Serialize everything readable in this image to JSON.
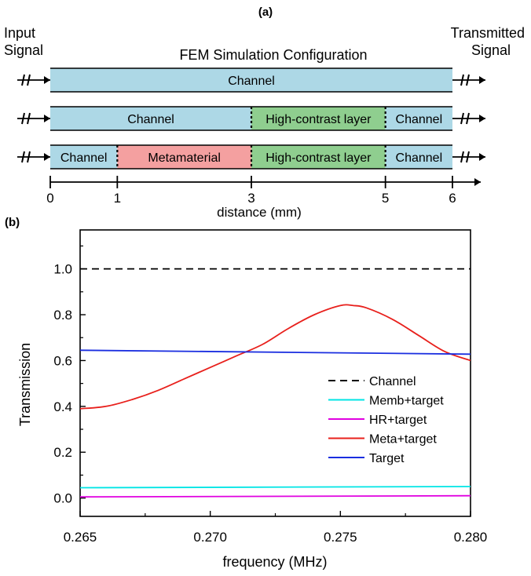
{
  "panel_a": {
    "label": "(a)",
    "title": "FEM Simulation Configuration",
    "input_label_line1": "Input",
    "input_label_line2": "Signal",
    "output_label_line1": "Transmitted",
    "output_label_line2": "Signal",
    "xlabel": "distance (mm)",
    "ticks": [
      0,
      1,
      3,
      5,
      6
    ],
    "rows": [
      [
        {
          "label": "Channel",
          "from": 0,
          "to": 6,
          "color": "#add8e6"
        }
      ],
      [
        {
          "label": "Channel",
          "from": 0,
          "to": 3,
          "color": "#add8e6"
        },
        {
          "label": "High-contrast layer",
          "from": 3,
          "to": 5,
          "color": "#8fce8f"
        },
        {
          "label": "Channel",
          "from": 5,
          "to": 6,
          "color": "#add8e6"
        }
      ],
      [
        {
          "label": "Channel",
          "from": 0,
          "to": 1,
          "color": "#add8e6"
        },
        {
          "label": "Metamaterial",
          "from": 1,
          "to": 3,
          "color": "#f4a0a0"
        },
        {
          "label": "High-contrast layer",
          "from": 3,
          "to": 5,
          "color": "#8fce8f"
        },
        {
          "label": "Channel",
          "from": 5,
          "to": 6,
          "color": "#add8e6"
        }
      ]
    ]
  },
  "chart_data": {
    "panel_label": "(b)",
    "type": "line",
    "xlabel": "frequency (MHz)",
    "ylabel": "Transmission",
    "xlim": [
      0.265,
      0.28
    ],
    "ylim": [
      -0.08,
      1.17
    ],
    "xticks": [
      "0.265",
      "0.270",
      "0.275",
      "0.280"
    ],
    "yticks": [
      "0.0",
      "0.2",
      "0.4",
      "0.6",
      "0.8",
      "1.0"
    ],
    "legend_position": "right",
    "series": [
      {
        "name": "Channel",
        "color": "#000000",
        "dash": true,
        "x": [
          0.265,
          0.28
        ],
        "y": [
          1.0,
          1.0
        ]
      },
      {
        "name": "Memb+target",
        "color": "#00e5e5",
        "x": [
          0.265,
          0.28
        ],
        "y": [
          0.045,
          0.05
        ]
      },
      {
        "name": "HR+target",
        "color": "#e000e0",
        "x": [
          0.265,
          0.28
        ],
        "y": [
          0.005,
          0.01
        ]
      },
      {
        "name": "Meta+target",
        "color": "#e8201c",
        "x": [
          0.265,
          0.266,
          0.267,
          0.268,
          0.269,
          0.27,
          0.271,
          0.272,
          0.273,
          0.274,
          0.275,
          0.2755,
          0.276,
          0.277,
          0.278,
          0.279,
          0.28
        ],
        "y": [
          0.39,
          0.4,
          0.43,
          0.47,
          0.52,
          0.57,
          0.62,
          0.67,
          0.74,
          0.8,
          0.84,
          0.84,
          0.83,
          0.78,
          0.71,
          0.64,
          0.6
        ]
      },
      {
        "name": "Target",
        "color": "#1a2ee0",
        "x": [
          0.265,
          0.28
        ],
        "y": [
          0.645,
          0.628
        ]
      }
    ]
  }
}
